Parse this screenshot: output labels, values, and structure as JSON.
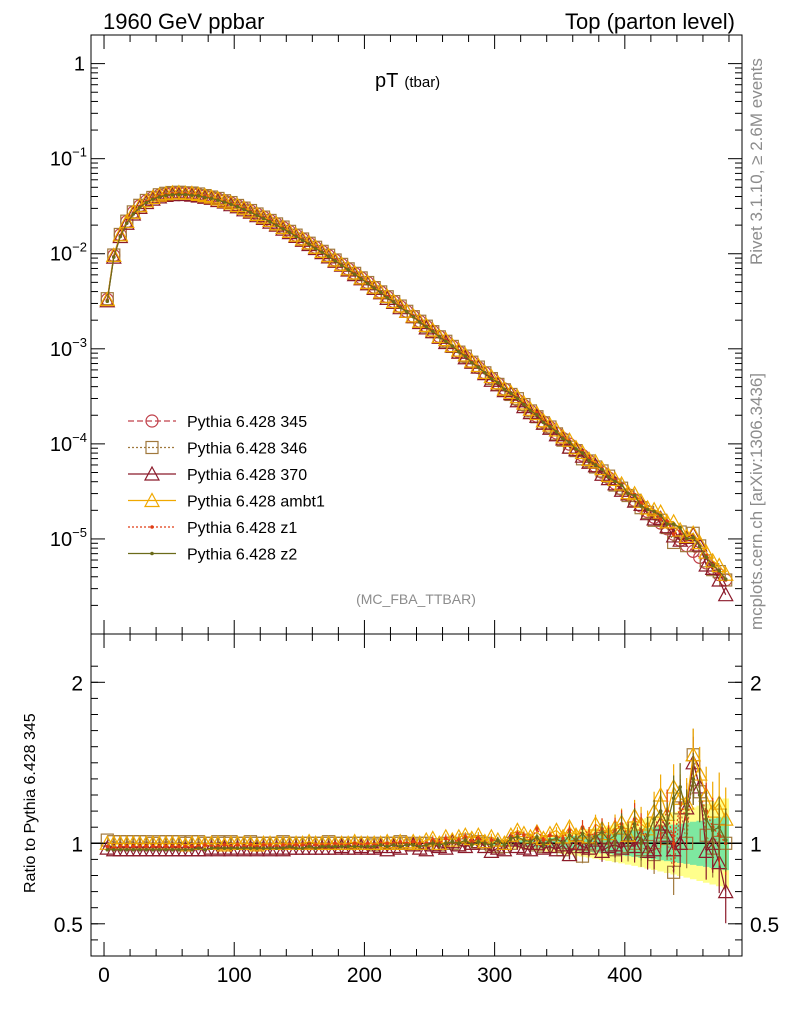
{
  "header": {
    "left": "1960 GeV ppbar",
    "right": "Top (parton level)"
  },
  "side_labels": {
    "rivet": "Rivet 3.1.10, ≥ 2.6M events",
    "mcplots": "mcplots.cern.ch [arXiv:1306.3436]"
  },
  "plot": {
    "title_main": "pT",
    "title_sub": "(tbar)",
    "analysis_tag": "(MC_FBA_TTBAR)"
  },
  "ratio_axis": {
    "ylabel": "Ratio to Pythia 6.428 345"
  },
  "colors": {
    "s345": "#c0404a",
    "s346": "#a0783c",
    "s370": "#8b1a2a",
    "ambt1": "#f0a800",
    "z1": "#e03c14",
    "z2": "#6b6b1a",
    "band_inner": "#7ee8a0",
    "band_outer": "#ffff8c"
  },
  "chart_data": {
    "type": "line",
    "xlim": [
      -10,
      490
    ],
    "x_ticks": [
      "0",
      "100",
      "200",
      "300",
      "400"
    ],
    "main_yscale": "log",
    "main_ylim": [
      1e-06,
      2
    ],
    "main_y_ticks": [
      {
        "v": 1,
        "base": "1",
        "exp": ""
      },
      {
        "v": 0.1,
        "base": "10",
        "exp": "−1"
      },
      {
        "v": 0.01,
        "base": "10",
        "exp": "−2"
      },
      {
        "v": 0.001,
        "base": "10",
        "exp": "−3"
      },
      {
        "v": 0.0001,
        "base": "10",
        "exp": "−4"
      },
      {
        "v": 1e-05,
        "base": "10",
        "exp": "−5"
      }
    ],
    "ratio_ylim": [
      0.3,
      2.3
    ],
    "ratio_y_ticks": [
      "0.5",
      "1",
      "2"
    ],
    "legend": [
      {
        "name": "Pythia 6.428 345",
        "key": "s345",
        "marker": "circle",
        "dash": "6,3"
      },
      {
        "name": "Pythia 6.428 346",
        "key": "s346",
        "marker": "square",
        "dash": "2,2"
      },
      {
        "name": "Pythia 6.428 370",
        "key": "s370",
        "marker": "triangle",
        "dash": ""
      },
      {
        "name": "Pythia 6.428 ambt1",
        "key": "ambt1",
        "marker": "triangle",
        "dash": ""
      },
      {
        "name": "Pythia 6.428 z1",
        "key": "z1",
        "marker": "dot",
        "dash": "2,2"
      },
      {
        "name": "Pythia 6.428 z2",
        "key": "z2",
        "marker": "dot",
        "dash": ""
      }
    ],
    "x": [
      2.5,
      7.5,
      12.5,
      17.5,
      22.5,
      27.5,
      32.5,
      37.5,
      42.5,
      47.5,
      52.5,
      57.5,
      62.5,
      67.5,
      72.5,
      77.5,
      82.5,
      87.5,
      92.5,
      97.5,
      102.5,
      107.5,
      112.5,
      117.5,
      122.5,
      127.5,
      132.5,
      137.5,
      142.5,
      147.5,
      152.5,
      157.5,
      162.5,
      167.5,
      172.5,
      177.5,
      182.5,
      187.5,
      192.5,
      197.5,
      202.5,
      207.5,
      212.5,
      217.5,
      222.5,
      227.5,
      232.5,
      237.5,
      242.5,
      247.5,
      252.5,
      257.5,
      262.5,
      267.5,
      272.5,
      277.5,
      282.5,
      287.5,
      292.5,
      297.5,
      302.5,
      307.5,
      312.5,
      317.5,
      322.5,
      327.5,
      332.5,
      337.5,
      342.5,
      347.5,
      352.5,
      357.5,
      362.5,
      367.5,
      372.5,
      377.5,
      382.5,
      387.5,
      392.5,
      397.5,
      402.5,
      407.5,
      412.5,
      417.5,
      422.5,
      427.5,
      432.5,
      437.5,
      442.5,
      447.5,
      452.5,
      457.5,
      462.5,
      467.5,
      472.5,
      477.5
    ],
    "ref_values": [
      0.0033,
      0.0096,
      0.0158,
      0.0218,
      0.0273,
      0.032,
      0.036,
      0.0391,
      0.0413,
      0.0428,
      0.0436,
      0.0439,
      0.0437,
      0.0431,
      0.0421,
      0.0409,
      0.0395,
      0.0378,
      0.0361,
      0.0342,
      0.0322,
      0.0302,
      0.0282,
      0.0262,
      0.0243,
      0.0224,
      0.0206,
      0.0189,
      0.0172,
      0.0157,
      0.0143,
      0.0129,
      0.0117,
      0.0106,
      0.00955,
      0.0086,
      0.00773,
      0.00694,
      0.00622,
      0.00557,
      0.00498,
      0.00445,
      0.00397,
      0.00353,
      0.00314,
      0.00279,
      0.00248,
      0.0022,
      0.00195,
      0.00173,
      0.00153,
      0.00135,
      0.0012,
      0.00106,
      0.000932,
      0.000821,
      0.000723,
      0.000636,
      0.000559,
      0.000491,
      0.000431,
      0.000378,
      0.000331,
      0.00029,
      0.000254,
      0.000222,
      0.000195,
      0.00017,
      0.000149,
      0.00013,
      0.000114,
      9.93e-05,
      8.67e-05,
      7.57e-05,
      6.61e-05,
      5.77e-05,
      5.04e-05,
      4.4e-05,
      3.84e-05,
      3.35e-05,
      2.92e-05,
      2.55e-05,
      2.22e-05,
      1.94e-05,
      1.69e-05,
      1.47e-05,
      1.28e-05,
      1.12e-05,
      9.7e-06,
      8.5e-06,
      7.4e-06,
      6.4e-06,
      5.6e-06,
      4.9e-06,
      4.2e-06,
      3.7e-06
    ],
    "series": [
      {
        "name": "Pythia 6.428 345",
        "ratio": [
          1,
          1,
          1,
          1,
          1,
          1,
          1,
          1,
          1,
          1,
          1,
          1,
          1,
          1,
          1,
          1,
          1,
          1,
          1,
          1,
          1,
          1,
          1,
          1,
          1,
          1,
          1,
          1,
          1,
          1,
          1,
          1,
          1,
          1,
          1,
          1,
          1,
          1,
          1,
          1,
          1,
          1,
          1,
          1,
          1,
          1,
          1,
          1,
          1,
          1,
          1,
          1,
          1,
          1,
          1,
          1,
          1,
          1,
          1,
          1,
          1,
          1,
          1,
          1,
          1,
          1,
          1,
          1,
          1,
          1,
          1,
          1,
          1,
          1,
          1,
          1,
          1,
          1,
          1,
          1,
          1,
          1,
          1,
          1,
          1,
          1,
          1,
          1,
          1,
          1,
          1,
          1,
          1,
          1,
          1,
          1
        ]
      },
      {
        "name": "Pythia 6.428 346",
        "ratio": [
          1.02,
          1.01,
          1.01,
          1.01,
          1.01,
          1.01,
          1.01,
          1.0,
          1.01,
          1.01,
          1.01,
          1.01,
          1.0,
          1.01,
          1.01,
          1.0,
          1.0,
          1.01,
          1.0,
          1.01,
          1.0,
          1.0,
          1.01,
          1.0,
          1.0,
          1.0,
          1.0,
          1.01,
          1.0,
          1.0,
          1.0,
          1.0,
          1.0,
          1.0,
          1.01,
          1.0,
          1.0,
          1.0,
          1.0,
          1.0,
          1.0,
          0.99,
          1.0,
          1.0,
          1.0,
          1.01,
          1.0,
          0.99,
          1.0,
          1.0,
          0.99,
          0.99,
          1.0,
          1.0,
          0.99,
          1.02,
          1.0,
          1.01,
          1.0,
          0.99,
          0.98,
          0.98,
          1.0,
          1.03,
          1.02,
          1.0,
          0.99,
          0.98,
          1.01,
          0.98,
          0.96,
          0.93,
          0.98,
          0.92,
          1.0,
          0.99,
          1.03,
          1.04,
          0.96,
          1.02,
          0.98,
          1.0,
          0.96,
          0.98,
          0.93,
          1.07,
          1.03,
          0.82,
          1.22,
          1.0,
          1.55,
          1.32,
          1.05,
          0.97,
          1.08,
          1.0
        ]
      },
      {
        "name": "Pythia 6.428 370",
        "ratio": [
          0.97,
          0.96,
          0.96,
          0.96,
          0.96,
          0.96,
          0.96,
          0.96,
          0.96,
          0.96,
          0.96,
          0.96,
          0.96,
          0.96,
          0.96,
          0.96,
          0.97,
          0.96,
          0.97,
          0.96,
          0.97,
          0.96,
          0.97,
          0.96,
          0.97,
          0.96,
          0.97,
          0.96,
          0.97,
          0.97,
          0.97,
          0.97,
          0.97,
          0.97,
          0.97,
          0.97,
          0.98,
          0.97,
          0.97,
          0.98,
          0.97,
          0.97,
          0.98,
          0.96,
          0.98,
          0.97,
          1.0,
          0.99,
          0.97,
          0.96,
          0.99,
          0.98,
          0.97,
          1.01,
          0.99,
          0.98,
          1.0,
          1.01,
          0.98,
          0.95,
          0.97,
          0.96,
          1.02,
          0.98,
          0.97,
          0.96,
          1.0,
          0.97,
          0.98,
          0.96,
          0.99,
          0.93,
          1.0,
          0.98,
          0.97,
          1.02,
          0.95,
          0.98,
          0.99,
          0.97,
          1.02,
          0.98,
          1.04,
          0.95,
          0.96,
          1.12,
          1.05,
          0.96,
          1.0,
          1.22,
          1.5,
          1.35,
          0.95,
          1.0,
          0.88,
          0.7
        ]
      },
      {
        "name": "Pythia 6.428 ambt1",
        "ratio": [
          1.0,
          1.0,
          1.0,
          1.0,
          1.0,
          1.0,
          1.0,
          1.0,
          1.0,
          1.0,
          1.0,
          1.0,
          0.99,
          1.0,
          1.0,
          1.0,
          1.0,
          1.0,
          0.99,
          1.0,
          1.0,
          1.0,
          1.0,
          0.99,
          1.0,
          1.0,
          1.0,
          1.0,
          1.0,
          1.0,
          1.0,
          1.01,
          1.0,
          1.0,
          1.0,
          1.0,
          1.0,
          1.0,
          1.01,
          1.0,
          1.0,
          1.0,
          1.0,
          1.01,
          1.0,
          1.01,
          1.0,
          1.01,
          1.0,
          1.02,
          1.03,
          1.0,
          1.04,
          1.02,
          1.04,
          1.05,
          1.03,
          1.05,
          1.01,
          1.04,
          1.02,
          1.0,
          1.05,
          1.08,
          1.06,
          1.04,
          1.07,
          1.03,
          1.06,
          1.08,
          1.04,
          1.1,
          1.05,
          1.07,
          1.04,
          1.12,
          1.09,
          1.06,
          1.1,
          1.13,
          1.05,
          1.17,
          1.12,
          1.09,
          1.2,
          1.3,
          1.18,
          1.35,
          1.28,
          1.25,
          1.55,
          1.43,
          1.3,
          1.2,
          1.25,
          1.15
        ]
      },
      {
        "name": "Pythia 6.428 z1",
        "ratio": [
          0.98,
          0.97,
          0.98,
          0.98,
          0.98,
          0.98,
          0.98,
          0.98,
          0.98,
          0.98,
          0.98,
          0.98,
          0.98,
          0.98,
          0.98,
          0.99,
          0.98,
          0.98,
          0.99,
          0.98,
          0.99,
          0.98,
          0.99,
          0.98,
          0.99,
          0.99,
          0.98,
          0.99,
          0.99,
          0.99,
          0.99,
          0.99,
          0.99,
          0.99,
          0.99,
          1.0,
          0.99,
          0.99,
          1.0,
          0.99,
          1.0,
          0.99,
          1.0,
          1.0,
          1.0,
          1.01,
          1.0,
          1.01,
          1.0,
          1.0,
          1.02,
          1.0,
          1.03,
          1.01,
          1.02,
          1.04,
          1.01,
          1.03,
          1.0,
          1.02,
          1.02,
          0.99,
          1.04,
          1.06,
          1.05,
          1.02,
          1.09,
          1.02,
          1.05,
          1.04,
          1.03,
          1.08,
          1.0,
          1.1,
          1.05,
          1.06,
          1.09,
          1.04,
          1.08,
          1.12,
          1.04,
          1.15,
          1.08,
          1.05,
          1.15,
          1.1,
          1.2,
          1.0,
          1.25,
          1.15,
          1.4,
          1.3,
          1.2,
          1.1,
          1.05,
          1.0
        ]
      },
      {
        "name": "Pythia 6.428 z2",
        "ratio": [
          0.96,
          0.96,
          0.96,
          0.96,
          0.96,
          0.96,
          0.96,
          0.96,
          0.96,
          0.96,
          0.96,
          0.96,
          0.96,
          0.96,
          0.97,
          0.96,
          0.97,
          0.97,
          0.97,
          0.97,
          0.97,
          0.97,
          0.97,
          0.97,
          0.97,
          0.97,
          0.97,
          0.97,
          0.98,
          0.97,
          0.97,
          0.98,
          0.97,
          0.98,
          0.98,
          0.98,
          0.98,
          0.98,
          0.98,
          0.98,
          0.98,
          0.98,
          0.99,
          0.98,
          0.99,
          0.98,
          0.99,
          0.99,
          0.98,
          0.99,
          1.0,
          0.99,
          1.0,
          1.01,
          1.0,
          1.02,
          0.99,
          1.01,
          1.0,
          0.99,
          1.02,
          0.99,
          1.03,
          1.04,
          1.02,
          1.01,
          1.04,
          0.99,
          1.02,
          1.03,
          1.0,
          1.05,
          1.02,
          1.06,
          1.01,
          1.04,
          1.07,
          1.02,
          1.05,
          1.1,
          1.03,
          1.12,
          1.0,
          1.05,
          1.15,
          1.2,
          1.12,
          1.28,
          1.35,
          1.18,
          1.4,
          1.3,
          1.15,
          1.08,
          1.1,
          1.02
        ]
      }
    ]
  }
}
